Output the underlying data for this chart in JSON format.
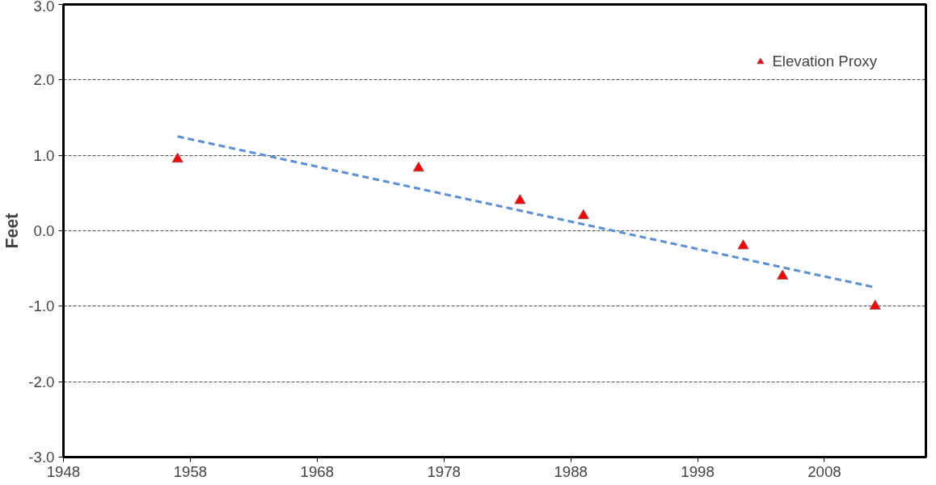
{
  "chart_data": {
    "type": "scatter",
    "ylabel": "Feet",
    "xlim": [
      1948,
      2016
    ],
    "xticks": [
      1948,
      1958,
      1968,
      1978,
      1988,
      1998,
      2008
    ],
    "ylim": [
      -3,
      3
    ],
    "yticks": [
      {
        "value": -3,
        "label": "-3.0"
      },
      {
        "value": -2,
        "label": "-2.0"
      },
      {
        "value": -1,
        "label": "-1.0"
      },
      {
        "value": 0,
        "label": "0.0"
      },
      {
        "value": 1,
        "label": "1.0"
      },
      {
        "value": 2,
        "label": "2.0"
      },
      {
        "value": 3,
        "label": "3.0"
      }
    ],
    "grid": "y",
    "legend": "top right",
    "series": [
      {
        "name": "Elevation Proxy",
        "marker": "triangle",
        "color": "#ff0000",
        "x": [
          1957,
          1976,
          1984,
          1989,
          2001.6,
          2004.7,
          2012
        ],
        "values": [
          0.95,
          0.83,
          0.4,
          0.2,
          -0.2,
          -0.6,
          -1.0
        ]
      },
      {
        "type": "line",
        "color": "#5b8fd6",
        "line_style": "dashed",
        "x": [
          1957,
          2012
        ],
        "values": [
          1.25,
          -0.75
        ]
      }
    ]
  }
}
